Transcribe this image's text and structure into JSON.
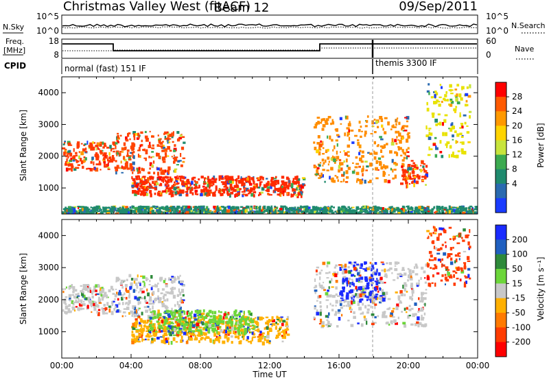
{
  "header": {
    "station": "Christmas Valley West (fitACF)",
    "beam": "Beam 12",
    "date": "09/Sep/2011"
  },
  "summary_panels": {
    "nsky_label": "N.Sky",
    "nsearch_label": "N.Search",
    "nsky_ticks": [
      "10^5",
      "10^0"
    ],
    "nsearch_ticks": [
      "10^5",
      "10^0"
    ],
    "freq_label_line1": "Freq.",
    "freq_label_line2": "[MHz]",
    "freq_ticks": [
      "18",
      "8"
    ],
    "nave_label": "Nave",
    "nave_ticks": [
      "60",
      "0"
    ],
    "cpid_label": "CPID",
    "cpid_modes": [
      {
        "text": "normal (fast) 151 IF"
      },
      {
        "text": "themis 3300 IF"
      }
    ]
  },
  "time_axis": {
    "xlabel": "Time UT",
    "ticks": [
      "00:00",
      "04:00",
      "08:00",
      "12:00",
      "16:00",
      "20:00",
      "00:00"
    ]
  },
  "chart_data": [
    {
      "type": "heatmap",
      "name": "power_panel",
      "ylabel": "Slant Range [km]",
      "ylim": [
        180,
        4500
      ],
      "yticks": [
        "4000",
        "3000",
        "2000",
        "1000"
      ],
      "ytick_values": [
        4000,
        3000,
        2000,
        1000
      ],
      "x_range_hours": [
        0,
        24
      ],
      "colorbar": {
        "label": "Power [dB]",
        "ticks": [
          "28",
          "24",
          "20",
          "16",
          "12",
          "8",
          "4"
        ],
        "colors": [
          "#ff0000",
          "#ff5a00",
          "#ff9900",
          "#ffd400",
          "#c8e43c",
          "#3caa50",
          "#1f8a6e",
          "#2a6ab0",
          "#1a3cff"
        ]
      },
      "echo_regions": [
        {
          "desc": "ionospheric band 00-03h",
          "t": [
            0.0,
            3.0
          ],
          "r": [
            1600,
            2500
          ],
          "color": "#ff3a00"
        },
        {
          "desc": "rising band 03-07h",
          "t": [
            3.0,
            7.0
          ],
          "r": [
            1500,
            2800
          ],
          "color": "#ff4500"
        },
        {
          "desc": "long band 04-14h",
          "t": [
            4.0,
            14.0
          ],
          "r": [
            800,
            1400
          ],
          "color": "#ff2a00"
        },
        {
          "desc": "evening irregular 14.5-20h",
          "t": [
            14.5,
            20.0
          ],
          "r": [
            1200,
            3300
          ],
          "color": "#ff8c00"
        },
        {
          "desc": "pre-midnight 19.5-21h",
          "t": [
            19.5,
            21.0
          ],
          "r": [
            1100,
            1900
          ],
          "color": "#ff3000"
        },
        {
          "desc": "late high range 21-23.5h",
          "t": [
            21.0,
            23.5
          ],
          "r": [
            2000,
            4300
          ],
          "color": "#e8e200"
        },
        {
          "desc": "ground scatter near range",
          "t": [
            0.0,
            24.0
          ],
          "r": [
            180,
            450
          ],
          "color": "#1f8a6e"
        }
      ]
    },
    {
      "type": "heatmap",
      "name": "velocity_panel",
      "ylabel": "Slant Range [km]",
      "ylim": [
        180,
        4500
      ],
      "yticks": [
        "4000",
        "3000",
        "2000",
        "1000"
      ],
      "ytick_values": [
        4000,
        3000,
        2000,
        1000
      ],
      "x_range_hours": [
        0,
        24
      ],
      "colorbar": {
        "label": "Velocity [m s⁻¹]",
        "ticks": [
          "200",
          "100",
          "50",
          "15",
          "-15",
          "-50",
          "-100",
          "-200"
        ],
        "colors": [
          "#1a2bff",
          "#2060c0",
          "#2e8a3a",
          "#6cd63a",
          "#c8c8c8",
          "#ffb000",
          "#ff7a00",
          "#ff3c00",
          "#ff0000"
        ]
      },
      "echo_regions": [
        {
          "desc": "ground scatter 00-03h",
          "t": [
            0.0,
            3.0
          ],
          "r": [
            1600,
            2500
          ],
          "color": "#c8c8c8"
        },
        {
          "desc": "ground scatter 03-07h",
          "t": [
            3.0,
            7.0
          ],
          "r": [
            1500,
            2800
          ],
          "color": "#c8c8c8"
        },
        {
          "desc": "slow negative band 04-13h",
          "t": [
            4.0,
            13.0
          ],
          "r": [
            700,
            1500
          ],
          "color": "#ffb000"
        },
        {
          "desc": "positive band 05-11h",
          "t": [
            5.0,
            11.0
          ],
          "r": [
            1000,
            1700
          ],
          "color": "#6cd63a"
        },
        {
          "desc": "evening ground scatter",
          "t": [
            14.5,
            21.0
          ],
          "r": [
            1200,
            3200
          ],
          "color": "#c8c8c8"
        },
        {
          "desc": "strong approaching 16-18.5h",
          "t": [
            16.0,
            18.5
          ],
          "r": [
            2000,
            3200
          ],
          "color": "#1a2bff"
        },
        {
          "desc": "late mixed 21-23.5h",
          "t": [
            21.0,
            23.5
          ],
          "r": [
            2500,
            4300
          ],
          "color": "#ff3c00"
        }
      ]
    }
  ]
}
